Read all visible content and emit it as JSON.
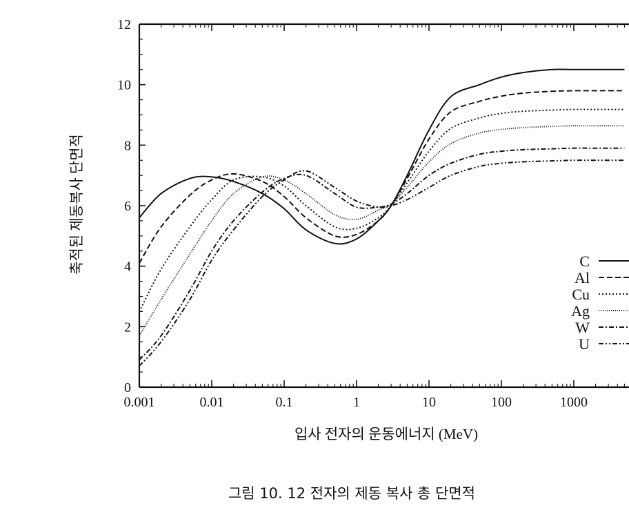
{
  "chart_data": {
    "type": "line",
    "xscale": "log",
    "xlim": [
      0.001,
      10000
    ],
    "ylim": [
      0,
      12
    ],
    "xticks": [
      "0.001",
      "0.01",
      "0.1",
      "1",
      "10",
      "100",
      "1000"
    ],
    "yticks": [
      "0",
      "2",
      "4",
      "6",
      "8",
      "10",
      "12"
    ],
    "xlabel": "입사 전자의 운동에너지 (MeV)",
    "ylabel": "축적된 제동복사 단면적",
    "caption": "그림 10. 12 전자의 제동 복사 총 단면적",
    "legend_position": "right",
    "grid": false,
    "x": [
      0.001,
      0.002,
      0.005,
      0.01,
      0.02,
      0.05,
      0.1,
      0.2,
      0.5,
      1,
      2,
      3,
      5,
      10,
      20,
      50,
      100,
      200,
      500,
      1000,
      2000,
      5000,
      10000
    ],
    "series": [
      {
        "name": "C",
        "dash": "",
        "values": [
          5.6,
          6.4,
          6.9,
          6.95,
          6.8,
          6.4,
          5.9,
          5.2,
          4.75,
          4.9,
          5.5,
          6.0,
          7.0,
          8.5,
          9.6,
          10.0,
          10.25,
          10.4,
          10.5,
          10.5,
          10.5,
          10.5,
          10.5
        ]
      },
      {
        "name": "Al",
        "dash": "8,4",
        "values": [
          4.1,
          5.3,
          6.35,
          6.85,
          7.05,
          6.8,
          6.3,
          5.6,
          5.0,
          5.05,
          5.5,
          6.0,
          6.9,
          8.2,
          9.1,
          9.45,
          9.62,
          9.72,
          9.78,
          9.8,
          9.8,
          9.8,
          9.8
        ]
      },
      {
        "name": "Cu",
        "dash": "2,3",
        "values": [
          2.5,
          3.9,
          5.3,
          6.2,
          6.85,
          6.95,
          6.65,
          6.0,
          5.3,
          5.25,
          5.6,
          6.0,
          6.75,
          7.8,
          8.55,
          8.9,
          9.05,
          9.12,
          9.16,
          9.18,
          9.18,
          9.18,
          9.18
        ]
      },
      {
        "name": "Ag",
        "dash": "1,2",
        "values": [
          1.7,
          2.9,
          4.4,
          5.5,
          6.4,
          6.95,
          6.85,
          6.4,
          5.7,
          5.55,
          5.85,
          6.05,
          6.6,
          7.45,
          8.05,
          8.4,
          8.52,
          8.58,
          8.62,
          8.64,
          8.64,
          8.64,
          8.64
        ]
      },
      {
        "name": "W",
        "dash": "7,3,2,3",
        "values": [
          0.9,
          1.7,
          3.2,
          4.5,
          5.5,
          6.45,
          6.9,
          7.0,
          6.4,
          5.95,
          5.95,
          6.05,
          6.4,
          7.0,
          7.4,
          7.7,
          7.8,
          7.85,
          7.88,
          7.9,
          7.9,
          7.9,
          7.9
        ]
      },
      {
        "name": "U",
        "dash": "7,3,2,3,2,3",
        "values": [
          0.7,
          1.5,
          2.9,
          4.2,
          5.2,
          6.3,
          6.85,
          7.15,
          6.6,
          6.15,
          5.95,
          6.0,
          6.2,
          6.6,
          7.0,
          7.3,
          7.4,
          7.45,
          7.48,
          7.5,
          7.5,
          7.5,
          7.5
        ]
      }
    ]
  }
}
